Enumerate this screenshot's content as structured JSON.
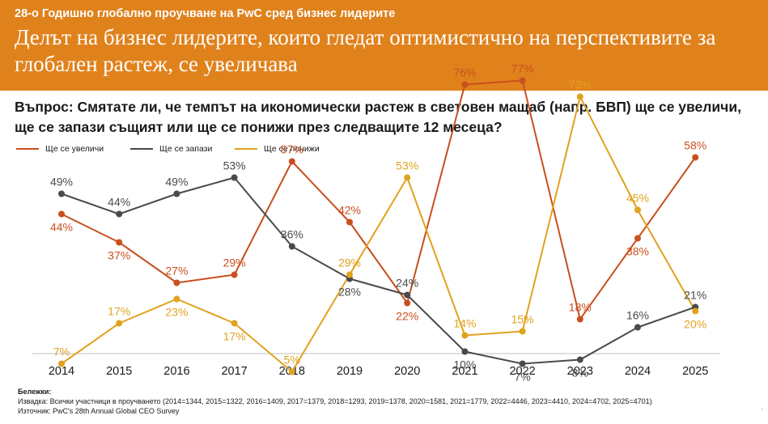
{
  "header": {
    "subtitle": "28-о Годишно глобално проучване на PwC сред бизнес лидерите",
    "title": "Делът на бизнес лидерите, които гледат оптимистично на перспективите за глобален растеж, се увеличава"
  },
  "question": "Въпрос: Смятате ли, че темпът на икономически растеж в световен мащаб (напр. БВП) ще се увеличи, ще се запази същият или ще се понижи през следващите 12 месеца?",
  "legend": [
    {
      "label": "Ще се увеличи",
      "color": "#c94f1e"
    },
    {
      "label": "Ще се запази",
      "color": "#4a4a4a"
    },
    {
      "label": "Ще се понижи",
      "color": "#e0a21e"
    }
  ],
  "notes": {
    "heading": "Бележки:",
    "sample": "Извадка: Всички участници в проучването (2014=1344, 2015=1322, 2016=1409, 2017=1379, 2018=1293, 2019=1378, 2020=1581, 2021=1779, 2022=4446, 2023=4410, 2024=4702, 2025=4701)",
    "source": "Източник: PwC's 28th Annual Global CEO Survey"
  },
  "page_mark": "-",
  "chart_data": {
    "type": "line",
    "categories": [
      "2014",
      "2015",
      "2016",
      "2017",
      "2018",
      "2019",
      "2020",
      "2021",
      "2022",
      "2023",
      "2024",
      "2025"
    ],
    "ylim": [
      0,
      100
    ],
    "series": [
      {
        "name": "Ще се увеличи",
        "color": "#c94f1e",
        "values": [
          44,
          37,
          27,
          29,
          57,
          42,
          22,
          76,
          77,
          18,
          38,
          58
        ],
        "label_pos": [
          "b",
          "b",
          "t",
          "t",
          "t",
          "t",
          "b",
          "t",
          "t",
          "t",
          "b",
          "t"
        ]
      },
      {
        "name": "Ще се запази",
        "color": "#4a4a4a",
        "values": [
          49,
          44,
          49,
          53,
          36,
          28,
          24,
          10,
          7,
          8,
          16,
          21
        ],
        "label_pos": [
          "t",
          "t",
          "t",
          "t",
          "t",
          "b",
          "t",
          "b",
          "b",
          "b",
          "t",
          "t"
        ]
      },
      {
        "name": "Ще се понижи",
        "color": "#e0a21e",
        "values": [
          7,
          17,
          23,
          17,
          5,
          29,
          53,
          14,
          15,
          73,
          45,
          20
        ],
        "label_pos": [
          "t",
          "t",
          "b",
          "b",
          "t",
          "t",
          "t",
          "t",
          "t",
          "t",
          "t",
          "b"
        ]
      }
    ]
  }
}
